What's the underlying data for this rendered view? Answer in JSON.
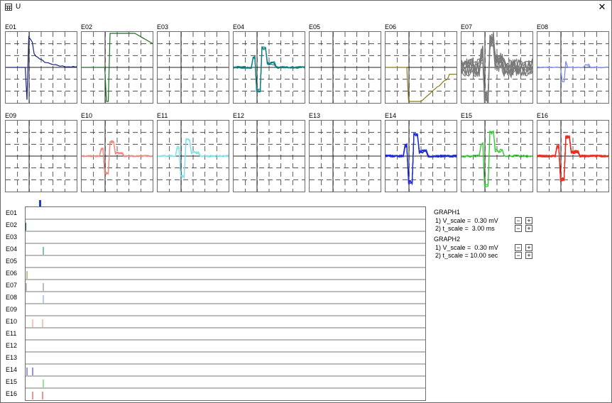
{
  "window": {
    "title": "U",
    "icon": "grid-window-icon",
    "close_icon": "close-icon"
  },
  "channels": [
    {
      "label": "E01",
      "color": "#1a237e"
    },
    {
      "label": "E02",
      "color": "#1b6e20"
    },
    {
      "label": "E03",
      "color": "#000000"
    },
    {
      "label": "E04",
      "color": "#0e7f80"
    },
    {
      "label": "E05",
      "color": "#000000"
    },
    {
      "label": "E06",
      "color": "#8a7a1a"
    },
    {
      "label": "E07",
      "color": "#7a7a7a"
    },
    {
      "label": "E08",
      "color": "#7d8fe6"
    },
    {
      "label": "E09",
      "color": "#000000"
    },
    {
      "label": "E10",
      "color": "#ef8a80"
    },
    {
      "label": "E11",
      "color": "#7fe3ea"
    },
    {
      "label": "E12",
      "color": "#000000"
    },
    {
      "label": "E13",
      "color": "#000000"
    },
    {
      "label": "E14",
      "color": "#1c2bd6"
    },
    {
      "label": "E15",
      "color": "#2fcb2f"
    },
    {
      "label": "E16",
      "color": "#ee2a1a"
    }
  ],
  "controls": {
    "graph1": {
      "title": "GRAPH1",
      "v_scale": "1) V_scale =  0.30 mV",
      "t_scale": "2) t_scale =  3.00 ms"
    },
    "graph2": {
      "title": "GRAPH2",
      "v_scale": "1) V_scale =  0.30 mV",
      "t_scale": "2) t_scale = 10.00 sec"
    },
    "decrease_symbol": "−",
    "increase_symbol": "+"
  }
}
